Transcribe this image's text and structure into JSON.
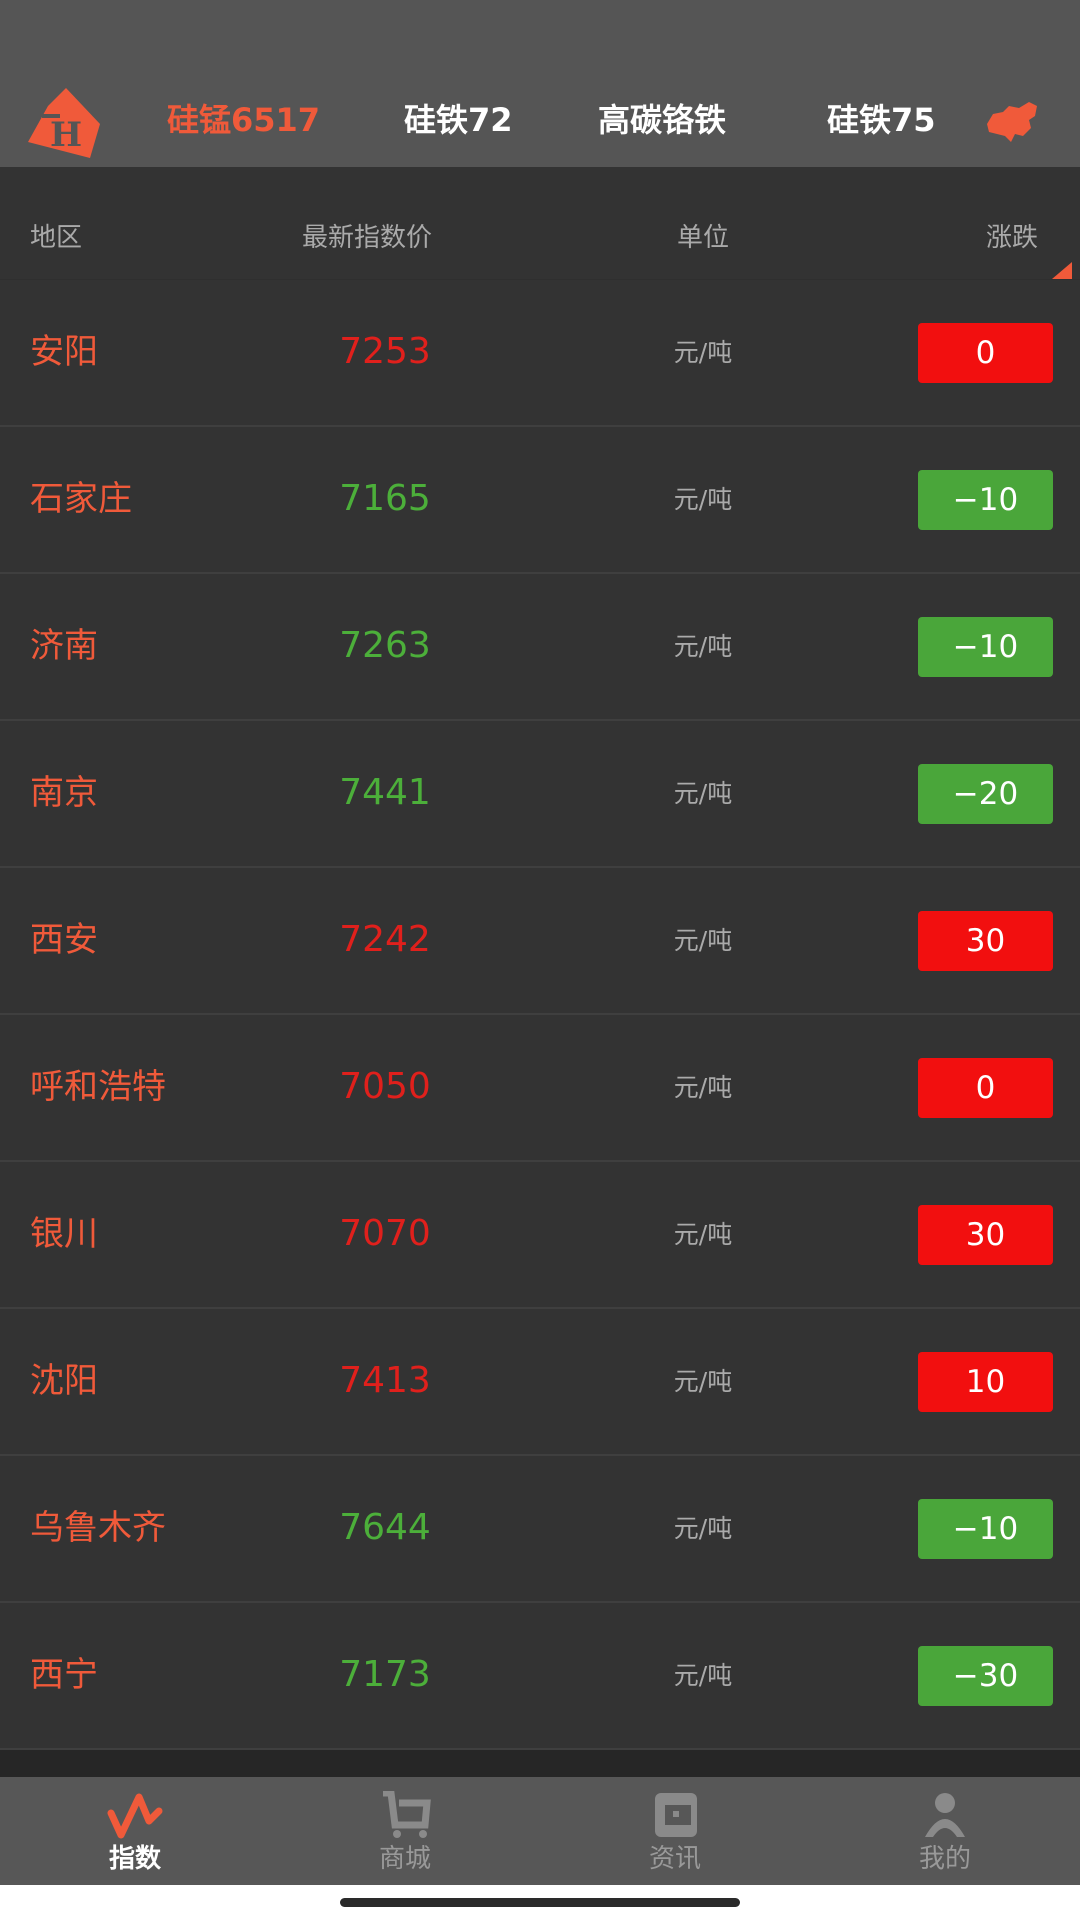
{
  "header": {
    "tabs": [
      {
        "label": "硅锰6517",
        "active": true
      },
      {
        "label": "硅铁72",
        "active": false
      },
      {
        "label": "高碳铬铁",
        "active": false
      },
      {
        "label": "硅铁75",
        "active": false
      }
    ],
    "map_icon": "china-map-icon",
    "logo_icon": "th-logo"
  },
  "table": {
    "headers": {
      "region": "地区",
      "price": "最新指数价",
      "unit": "单位",
      "change": "涨跌"
    },
    "rows": [
      {
        "region": "安阳",
        "price": "7253",
        "unit": "元/吨",
        "change": "0",
        "trend": "up"
      },
      {
        "region": "石家庄",
        "price": "7165",
        "unit": "元/吨",
        "change": "−10",
        "trend": "down"
      },
      {
        "region": "济南",
        "price": "7263",
        "unit": "元/吨",
        "change": "−10",
        "trend": "down"
      },
      {
        "region": "南京",
        "price": "7441",
        "unit": "元/吨",
        "change": "−20",
        "trend": "down"
      },
      {
        "region": "西安",
        "price": "7242",
        "unit": "元/吨",
        "change": "30",
        "trend": "up"
      },
      {
        "region": "呼和浩特",
        "price": "7050",
        "unit": "元/吨",
        "change": "0",
        "trend": "up"
      },
      {
        "region": "银川",
        "price": "7070",
        "unit": "元/吨",
        "change": "30",
        "trend": "up"
      },
      {
        "region": "沈阳",
        "price": "7413",
        "unit": "元/吨",
        "change": "10",
        "trend": "up"
      },
      {
        "region": "乌鲁木齐",
        "price": "7644",
        "unit": "元/吨",
        "change": "−10",
        "trend": "down"
      },
      {
        "region": "西宁",
        "price": "7173",
        "unit": "元/吨",
        "change": "−30",
        "trend": "down"
      }
    ]
  },
  "colors": {
    "up_text": "#e0201c",
    "down_text": "#4caf3a",
    "up_badge": "#f20f0f",
    "down_badge": "#4aa63a",
    "accent": "#f05a3a"
  },
  "nav": {
    "items": [
      {
        "label": "指数",
        "icon": "index-wave-icon",
        "active": true
      },
      {
        "label": "商城",
        "icon": "cart-icon",
        "active": false
      },
      {
        "label": "资讯",
        "icon": "news-icon",
        "active": false
      },
      {
        "label": "我的",
        "icon": "user-icon",
        "active": false
      }
    ]
  }
}
